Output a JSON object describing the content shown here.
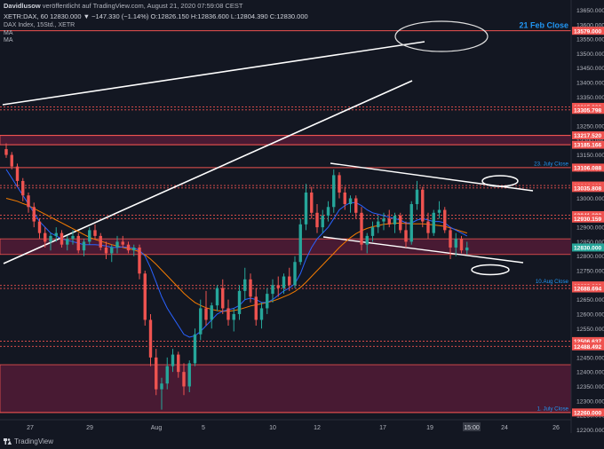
{
  "header": {
    "author": "Davidlusow",
    "published": "veröffentlicht auf TradingView.com, August 21, 2020 07:59:08 CEST",
    "ohlc": "XETR:DAX, 60  12830.000 ▼ −147.330 (−1.14%)  O:12826.150  H:12836.600  L:12804.390  C:12830.000"
  },
  "symbol": {
    "name": "DAX Index, 15Std., XETR",
    "ma1": "MA",
    "ma2": "MA"
  },
  "footer": {
    "brand": "TradingView"
  },
  "colors": {
    "background": "#131722",
    "up": "#26a69a",
    "down": "#ef5350",
    "level": "#ef5350",
    "zone": "#8a1f4a",
    "ma_blue": "#2962ff",
    "ma_orange": "#f57c00",
    "annotation_blue": "#2196f3"
  },
  "chart_data": {
    "type": "candlestick",
    "title": "",
    "ylim": [
      12192,
      13670
    ],
    "y_ticks": [
      "13650.000",
      "13600.000",
      "13550.000",
      "13500.000",
      "13450.000",
      "13400.000",
      "13350.000",
      "13300.000",
      "13250.000",
      "13200.000",
      "13150.000",
      "13100.000",
      "13050.000",
      "13000.000",
      "12950.000",
      "12900.000",
      "12850.000",
      "12800.000",
      "12750.000",
      "12700.000",
      "12650.000",
      "12600.000",
      "12550.000",
      "12500.000",
      "12450.000",
      "12400.000",
      "12350.000",
      "12300.000",
      "12250.000",
      "12200.000"
    ],
    "x_ticks": [
      "27",
      "29",
      "Aug",
      "5",
      "10",
      "12",
      "17",
      "19",
      "24",
      "26"
    ],
    "levels": [
      {
        "price": "13579.000",
        "style": "solid",
        "label": "21 Feb Close"
      },
      {
        "price": "13315.993",
        "style": "dotted"
      },
      {
        "price": "13305.798",
        "style": "dotted"
      },
      {
        "price": "13217.520",
        "style": "solid"
      },
      {
        "price": "13185.166",
        "style": "solid"
      },
      {
        "price": "13106.088",
        "style": "solid",
        "label": "23. July Close"
      },
      {
        "price": "13044.189",
        "style": "dotted"
      },
      {
        "price": "13035.808",
        "style": "dotted"
      },
      {
        "price": "12941.892",
        "style": "dotted"
      },
      {
        "price": "12930.159",
        "style": "dotted"
      },
      {
        "price": "12699.000",
        "style": "dotted",
        "label": "10.Aug Close"
      },
      {
        "price": "12688.694",
        "style": "dotted"
      },
      {
        "price": "12506.637",
        "style": "dotted"
      },
      {
        "price": "12488.492",
        "style": "dotted"
      },
      {
        "price": "12260.000",
        "style": "solid",
        "label": "1. July Close"
      }
    ],
    "current_price": "12830.000",
    "zones": [
      [
        13185,
        13217
      ],
      [
        12806,
        12860
      ],
      [
        12260,
        12425
      ]
    ],
    "candles": [
      [
        13170,
        13190,
        13140,
        13150
      ],
      [
        13150,
        13160,
        13100,
        13110
      ],
      [
        13110,
        13120,
        13040,
        13060
      ],
      [
        13060,
        13070,
        12990,
        13010
      ],
      [
        13010,
        13020,
        12950,
        12970
      ],
      [
        12970,
        12985,
        12900,
        12920
      ],
      [
        12920,
        12930,
        12860,
        12880
      ],
      [
        12880,
        12900,
        12830,
        12850
      ],
      [
        12850,
        12880,
        12820,
        12870
      ],
      [
        12870,
        12900,
        12850,
        12880
      ],
      [
        12880,
        12890,
        12830,
        12840
      ],
      [
        12840,
        12870,
        12820,
        12860
      ],
      [
        12860,
        12890,
        12840,
        12870
      ],
      [
        12870,
        12880,
        12810,
        12820
      ],
      [
        12820,
        12860,
        12800,
        12850
      ],
      [
        12850,
        12900,
        12840,
        12890
      ],
      [
        12890,
        12910,
        12860,
        12870
      ],
      [
        12870,
        12880,
        12820,
        12830
      ],
      [
        12830,
        12850,
        12790,
        12810
      ],
      [
        12810,
        12840,
        12780,
        12830
      ],
      [
        12830,
        12870,
        12810,
        12850
      ],
      [
        12850,
        12870,
        12830,
        12840
      ],
      [
        12840,
        12850,
        12810,
        12820
      ],
      [
        12820,
        12840,
        12800,
        12830
      ],
      [
        12830,
        12840,
        12720,
        12740
      ],
      [
        12740,
        12750,
        12560,
        12580
      ],
      [
        12580,
        12600,
        12420,
        12450
      ],
      [
        12450,
        12480,
        12320,
        12340
      ],
      [
        12340,
        12380,
        12270,
        12360
      ],
      [
        12360,
        12450,
        12340,
        12420
      ],
      [
        12420,
        12480,
        12400,
        12460
      ],
      [
        12460,
        12470,
        12380,
        12400
      ],
      [
        12400,
        12430,
        12320,
        12350
      ],
      [
        12350,
        12440,
        12330,
        12430
      ],
      [
        12430,
        12550,
        12420,
        12530
      ],
      [
        12530,
        12650,
        12510,
        12620
      ],
      [
        12620,
        12680,
        12560,
        12580
      ],
      [
        12580,
        12640,
        12550,
        12630
      ],
      [
        12630,
        12700,
        12610,
        12690
      ],
      [
        12690,
        12720,
        12600,
        12620
      ],
      [
        12620,
        12650,
        12560,
        12580
      ],
      [
        12580,
        12620,
        12540,
        12600
      ],
      [
        12600,
        12700,
        12580,
        12680
      ],
      [
        12680,
        12760,
        12650,
        12720
      ],
      [
        12720,
        12740,
        12640,
        12660
      ],
      [
        12660,
        12690,
        12560,
        12580
      ],
      [
        12580,
        12640,
        12550,
        12620
      ],
      [
        12620,
        12690,
        12600,
        12670
      ],
      [
        12670,
        12720,
        12640,
        12700
      ],
      [
        12700,
        12730,
        12660,
        12690
      ],
      [
        12690,
        12740,
        12670,
        12730
      ],
      [
        12730,
        12760,
        12680,
        12700
      ],
      [
        12700,
        12800,
        12690,
        12780
      ],
      [
        12780,
        12930,
        12770,
        12910
      ],
      [
        12910,
        13050,
        12890,
        13020
      ],
      [
        13020,
        13040,
        12930,
        12950
      ],
      [
        12950,
        12980,
        12880,
        12900
      ],
      [
        12900,
        12960,
        12880,
        12940
      ],
      [
        12940,
        12990,
        12920,
        12970
      ],
      [
        12970,
        13100,
        12950,
        13080
      ],
      [
        13080,
        13090,
        13000,
        13020
      ],
      [
        13020,
        13040,
        12960,
        12980
      ],
      [
        12980,
        13010,
        12950,
        13000
      ],
      [
        13000,
        13010,
        12930,
        12950
      ],
      [
        12950,
        12970,
        12820,
        12840
      ],
      [
        12840,
        12880,
        12810,
        12870
      ],
      [
        12870,
        12920,
        12850,
        12900
      ],
      [
        12900,
        12940,
        12880,
        12920
      ],
      [
        12920,
        12950,
        12890,
        12930
      ],
      [
        12930,
        12960,
        12900,
        12910
      ],
      [
        12910,
        12950,
        12880,
        12940
      ],
      [
        12940,
        12950,
        12880,
        12890
      ],
      [
        12890,
        12920,
        12830,
        12850
      ],
      [
        12850,
        12990,
        12840,
        12980
      ],
      [
        12980,
        13060,
        12960,
        13030
      ],
      [
        13030,
        13040,
        12900,
        12920
      ],
      [
        12920,
        12950,
        12860,
        12880
      ],
      [
        12880,
        12960,
        12870,
        12950
      ],
      [
        12950,
        12990,
        12930,
        12960
      ],
      [
        12960,
        12970,
        12880,
        12890
      ],
      [
        12890,
        12900,
        12790,
        12830
      ],
      [
        12830,
        12880,
        12800,
        12860
      ],
      [
        12860,
        12870,
        12810,
        12820
      ],
      [
        12820,
        12850,
        12805,
        12830
      ]
    ],
    "ma_fast": [
      13100,
      13070,
      13040,
      13010,
      12980,
      12950,
      12920,
      12900,
      12880,
      12870,
      12860,
      12855,
      12850,
      12845,
      12840,
      12840,
      12840,
      12838,
      12835,
      12830,
      12830,
      12832,
      12830,
      12828,
      12820,
      12800,
      12760,
      12710,
      12660,
      12620,
      12590,
      12560,
      12530,
      12520,
      12525,
      12540,
      12560,
      12580,
      12600,
      12610,
      12615,
      12620,
      12630,
      12650,
      12655,
      12650,
      12640,
      12640,
      12650,
      12665,
      12680,
      12690,
      12705,
      12740,
      12790,
      12830,
      12860,
      12880,
      12900,
      12930,
      12960,
      12975,
      12985,
      12985,
      12975,
      12960,
      12950,
      12945,
      12940,
      12935,
      12930,
      12925,
      12915,
      12915,
      12925,
      12930,
      12925,
      12920,
      12920,
      12915,
      12900,
      12890,
      12880,
      12870
    ],
    "ma_slow": [
      13000,
      12995,
      12990,
      12982,
      12975,
      12965,
      12955,
      12945,
      12935,
      12925,
      12915,
      12905,
      12895,
      12885,
      12875,
      12865,
      12858,
      12852,
      12846,
      12840,
      12835,
      12830,
      12826,
      12822,
      12815,
      12805,
      12790,
      12772,
      12752,
      12732,
      12712,
      12692,
      12672,
      12655,
      12640,
      12630,
      12622,
      12616,
      12612,
      12610,
      12610,
      12612,
      12616,
      12622,
      12628,
      12632,
      12636,
      12640,
      12645,
      12652,
      12660,
      12668,
      12678,
      12692,
      12710,
      12730,
      12750,
      12770,
      12790,
      12810,
      12830,
      12848,
      12864,
      12878,
      12888,
      12896,
      12902,
      12906,
      12910,
      12912,
      12914,
      12914,
      12913,
      12912,
      12912,
      12912,
      12910,
      12908,
      12906,
      12903,
      12898,
      12892,
      12886,
      12880
    ]
  }
}
